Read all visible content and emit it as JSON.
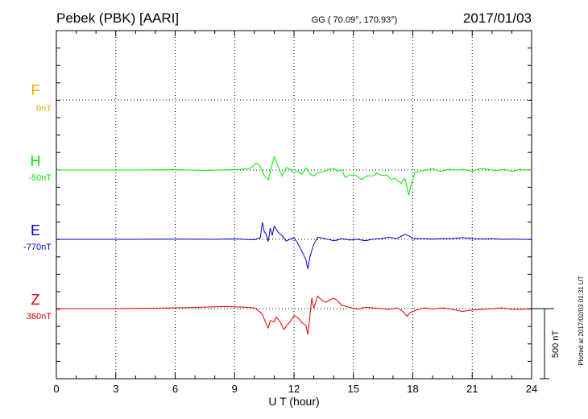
{
  "header": {
    "station": "Pebek (PBK)  [AARI]",
    "coords": "GG ( 70.09°, 170.93°)",
    "date": "2017/01/03"
  },
  "side_note": "Plotted at 2017/02/03 01:31  UT",
  "colors": {
    "F": "#ffa500",
    "H": "#00ee00",
    "E": "#0000cc",
    "Z": "#dd0000",
    "axis": "#000000"
  },
  "chart_data": {
    "type": "line",
    "xlabel": "U T (hour)",
    "xlim": [
      0,
      24
    ],
    "x_ticks": [
      0,
      3,
      6,
      9,
      12,
      15,
      18,
      21,
      24
    ],
    "x_tick_labels": [
      "0",
      "3",
      "6",
      "9",
      "12",
      "15",
      "18",
      "21",
      "24"
    ],
    "scale_bar_label": "500 nT",
    "series": [
      {
        "name": "F",
        "baseline_label": "0nT",
        "points": []
      },
      {
        "name": "H",
        "baseline_label": "-50nT",
        "points": [
          [
            0,
            0
          ],
          [
            2,
            0
          ],
          [
            4,
            0
          ],
          [
            6,
            3
          ],
          [
            7.5,
            -3
          ],
          [
            8.5,
            2
          ],
          [
            9.3,
            4
          ],
          [
            9.8,
            12
          ],
          [
            10.1,
            50
          ],
          [
            10.3,
            25
          ],
          [
            10.5,
            -40
          ],
          [
            10.7,
            -70
          ],
          [
            10.9,
            45
          ],
          [
            11.0,
            95
          ],
          [
            11.2,
            25
          ],
          [
            11.4,
            -45
          ],
          [
            11.6,
            18
          ],
          [
            11.8,
            6
          ],
          [
            12.0,
            -22
          ],
          [
            12.2,
            -8
          ],
          [
            12.4,
            -30
          ],
          [
            12.6,
            16
          ],
          [
            12.8,
            -28
          ],
          [
            13.0,
            -42
          ],
          [
            13.2,
            -18
          ],
          [
            13.5,
            -12
          ],
          [
            13.8,
            4
          ],
          [
            14.0,
            12
          ],
          [
            14.2,
            -8
          ],
          [
            14.4,
            2
          ],
          [
            14.6,
            -55
          ],
          [
            14.8,
            -35
          ],
          [
            15.1,
            -35
          ],
          [
            15.4,
            -68
          ],
          [
            15.7,
            -42
          ],
          [
            16.0,
            -42
          ],
          [
            16.2,
            -22
          ],
          [
            16.4,
            -38
          ],
          [
            16.7,
            -35
          ],
          [
            16.9,
            -68
          ],
          [
            17.1,
            -60
          ],
          [
            17.4,
            -95
          ],
          [
            17.6,
            -60
          ],
          [
            17.8,
            -180
          ],
          [
            17.9,
            -112
          ],
          [
            18.1,
            -18
          ],
          [
            18.5,
            -5
          ],
          [
            19.0,
            10
          ],
          [
            19.4,
            -10
          ],
          [
            19.8,
            5
          ],
          [
            20.2,
            0
          ],
          [
            20.6,
            5
          ],
          [
            21.0,
            -10
          ],
          [
            21.4,
            10
          ],
          [
            21.8,
            5
          ],
          [
            22.2,
            -5
          ],
          [
            22.6,
            5
          ],
          [
            23.0,
            -10
          ],
          [
            23.4,
            5
          ],
          [
            23.8,
            0
          ],
          [
            24,
            0
          ]
        ]
      },
      {
        "name": "E",
        "baseline_label": "-770nT",
        "points": [
          [
            0,
            0
          ],
          [
            2,
            0
          ],
          [
            4,
            0
          ],
          [
            6,
            2
          ],
          [
            8,
            0
          ],
          [
            9,
            3
          ],
          [
            10.0,
            -3
          ],
          [
            10.3,
            12
          ],
          [
            10.4,
            120
          ],
          [
            10.5,
            55
          ],
          [
            10.6,
            35
          ],
          [
            10.7,
            -15
          ],
          [
            10.8,
            78
          ],
          [
            10.9,
            28
          ],
          [
            11.0,
            95
          ],
          [
            11.2,
            50
          ],
          [
            11.4,
            25
          ],
          [
            11.6,
            -12
          ],
          [
            12.0,
            12
          ],
          [
            12.2,
            -32
          ],
          [
            12.4,
            -85
          ],
          [
            12.6,
            -145
          ],
          [
            12.7,
            -210
          ],
          [
            12.8,
            -125
          ],
          [
            13.0,
            -35
          ],
          [
            13.2,
            15
          ],
          [
            13.5,
            7
          ],
          [
            14.0,
            -10
          ],
          [
            14.2,
            -5
          ],
          [
            14.4,
            5
          ],
          [
            14.8,
            -5
          ],
          [
            15.2,
            0
          ],
          [
            15.6,
            -10
          ],
          [
            16.0,
            2
          ],
          [
            16.4,
            5
          ],
          [
            16.8,
            15
          ],
          [
            17.2,
            5
          ],
          [
            17.4,
            20
          ],
          [
            17.6,
            35
          ],
          [
            17.8,
            25
          ],
          [
            18.0,
            5
          ],
          [
            18.5,
            5
          ],
          [
            19.0,
            2
          ],
          [
            19.5,
            5
          ],
          [
            20.0,
            5
          ],
          [
            20.5,
            12
          ],
          [
            21.0,
            5
          ],
          [
            21.5,
            2
          ],
          [
            22.0,
            5
          ],
          [
            22.5,
            0
          ],
          [
            23.0,
            2
          ],
          [
            23.5,
            0
          ],
          [
            24,
            0
          ]
        ]
      },
      {
        "name": "Z",
        "baseline_label": "360nT",
        "points": [
          [
            0,
            0
          ],
          [
            3,
            0
          ],
          [
            5,
            3
          ],
          [
            7,
            8
          ],
          [
            8.5,
            15
          ],
          [
            9.5,
            10
          ],
          [
            10.0,
            5
          ],
          [
            10.2,
            -15
          ],
          [
            10.4,
            -40
          ],
          [
            10.5,
            -75
          ],
          [
            10.6,
            -110
          ],
          [
            10.7,
            -140
          ],
          [
            10.8,
            -85
          ],
          [
            11.0,
            -95
          ],
          [
            11.1,
            -60
          ],
          [
            11.3,
            -95
          ],
          [
            11.5,
            -150
          ],
          [
            11.6,
            -125
          ],
          [
            11.8,
            -95
          ],
          [
            12.0,
            -50
          ],
          [
            12.2,
            -65
          ],
          [
            12.4,
            -100
          ],
          [
            12.6,
            -120
          ],
          [
            12.7,
            -185
          ],
          [
            12.8,
            -55
          ],
          [
            12.9,
            75
          ],
          [
            13.0,
            5
          ],
          [
            13.2,
            90
          ],
          [
            13.4,
            60
          ],
          [
            13.6,
            45
          ],
          [
            14.0,
            75
          ],
          [
            14.2,
            55
          ],
          [
            14.4,
            25
          ],
          [
            14.8,
            10
          ],
          [
            15.2,
            -5
          ],
          [
            15.6,
            10
          ],
          [
            16.0,
            5
          ],
          [
            16.4,
            0
          ],
          [
            16.8,
            -5
          ],
          [
            17.2,
            5
          ],
          [
            17.5,
            -20
          ],
          [
            17.7,
            -55
          ],
          [
            17.9,
            -25
          ],
          [
            18.2,
            -10
          ],
          [
            18.6,
            5
          ],
          [
            19.0,
            -3
          ],
          [
            19.5,
            5
          ],
          [
            20.0,
            -5
          ],
          [
            20.5,
            -20
          ],
          [
            21.0,
            -10
          ],
          [
            21.5,
            -5
          ],
          [
            22.0,
            0
          ],
          [
            22.5,
            5
          ],
          [
            23.0,
            -5
          ],
          [
            23.5,
            -5
          ],
          [
            24,
            0
          ]
        ]
      }
    ]
  }
}
